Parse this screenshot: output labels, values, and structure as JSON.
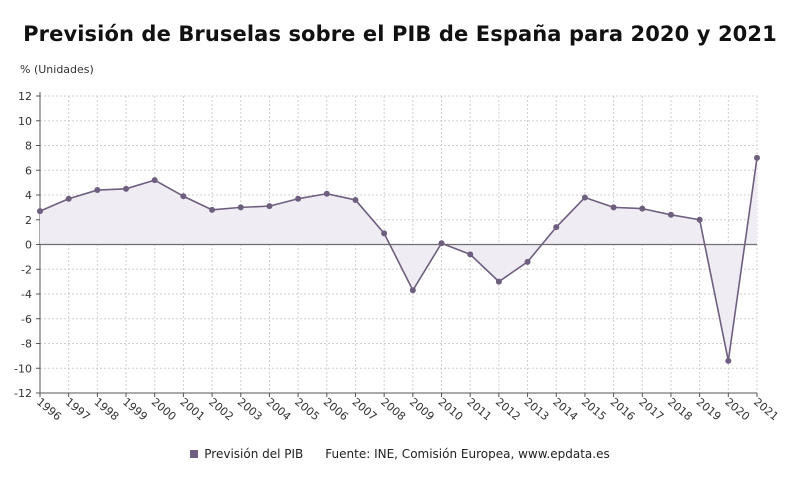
{
  "chart_data": {
    "type": "line",
    "title": "Previsión de Bruselas sobre el PIB de España para 2020 y 2021",
    "ylabel": "% (Unidades)",
    "xlabel": "",
    "ylim": [
      -12,
      12
    ],
    "yticks": [
      -12,
      -10,
      -8,
      -6,
      -4,
      -2,
      0,
      2,
      4,
      6,
      8,
      10,
      12
    ],
    "grid": true,
    "legend_position": "bottom",
    "categories": [
      "1996",
      "1997",
      "1998",
      "1999",
      "2000",
      "2001",
      "2002",
      "2003",
      "2004",
      "2005",
      "2006",
      "2007",
      "2008",
      "2009",
      "2010",
      "2011",
      "2012",
      "2013",
      "2014",
      "2015",
      "2016",
      "2017",
      "2018",
      "2019",
      "2020",
      "2021"
    ],
    "series": [
      {
        "name": "Previsión del PIB",
        "color": "#6e5f7f",
        "fill": "#efecf3",
        "values": [
          2.7,
          3.7,
          4.4,
          4.5,
          5.2,
          3.9,
          2.8,
          3.0,
          3.1,
          3.7,
          4.1,
          3.6,
          0.9,
          -3.7,
          0.1,
          -0.8,
          -3.0,
          -1.4,
          1.4,
          3.8,
          3.0,
          2.9,
          2.4,
          2.0,
          -9.4,
          7.0
        ]
      }
    ],
    "source": "Fuente: INE, Comisión Europea, www.epdata.es"
  }
}
